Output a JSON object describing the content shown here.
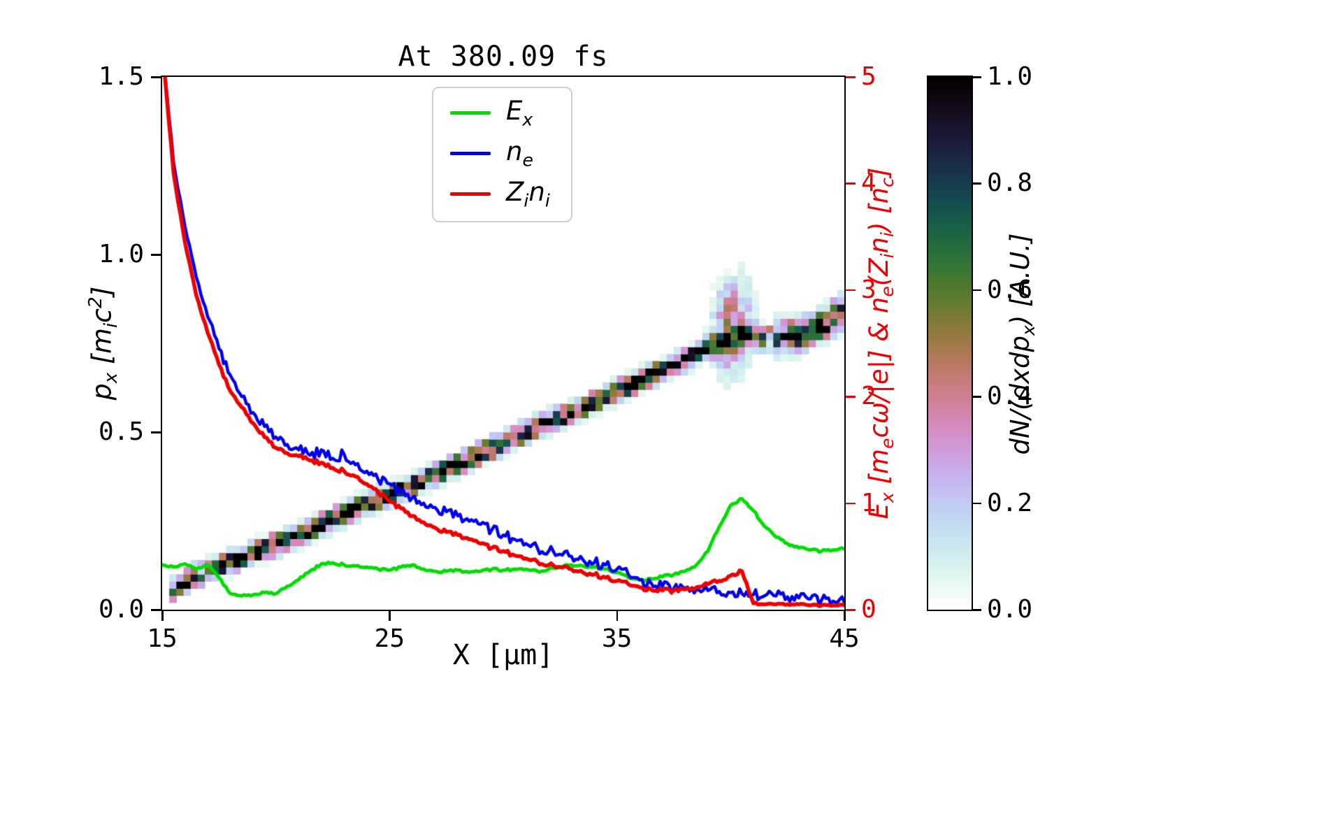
{
  "title": "At 380.09 fs",
  "axes": {
    "xlabel": "X [μm]",
    "ylabel_left": "p_x [m_ic^2]",
    "ylabel_right": "E_x [m_ecω/|e|] & n_e(Z_in_i) [n_c]",
    "x_ticks": [
      "15",
      "25",
      "35",
      "45"
    ],
    "x_tick_values": [
      15,
      25,
      35,
      45
    ],
    "y_ticks_left": [
      "0.0",
      "0.5",
      "1.0",
      "1.5"
    ],
    "y_tick_left_values": [
      0,
      0.5,
      1.0,
      1.5
    ],
    "y_ticks_right": [
      "0",
      "1",
      "2",
      "3",
      "4",
      "5"
    ],
    "y_tick_right_values": [
      0,
      1,
      2,
      3,
      4,
      5
    ],
    "x_range": [
      15,
      45
    ],
    "y_left_range": [
      0,
      1.5
    ],
    "y_right_range": [
      0,
      5
    ]
  },
  "colorbar": {
    "label": "dN/(dxdp_x) [A.U.]",
    "ticks": [
      "0.0",
      "0.2",
      "0.4",
      "0.6",
      "0.8",
      "1.0"
    ],
    "tick_values": [
      0,
      0.2,
      0.4,
      0.6,
      0.8,
      1.0
    ],
    "range": [
      0,
      1
    ],
    "colormap": "cubehelix_r"
  },
  "legend": [
    {
      "label": "E_x",
      "color": "#00dd00"
    },
    {
      "label": "n_e",
      "color": "#0000ee"
    },
    {
      "label": "Z_in_i",
      "color": "#ee0000"
    }
  ],
  "colors": {
    "green": "#00dd00",
    "blue": "#0000ee",
    "red": "#ee0000",
    "axis": "#000000"
  },
  "chart_data": {
    "type": "mixed",
    "x_unit": "μm",
    "x": [
      15,
      15.5,
      16,
      16.5,
      17,
      17.5,
      18,
      18.5,
      19,
      19.5,
      20,
      20.5,
      21,
      21.5,
      22,
      22.5,
      23,
      23.5,
      24,
      24.5,
      25,
      25.5,
      26,
      26.5,
      27,
      27.5,
      28,
      28.5,
      29,
      29.5,
      30,
      30.5,
      31,
      31.5,
      32,
      32.5,
      33,
      33.5,
      34,
      34.5,
      35,
      35.5,
      36,
      36.5,
      37,
      37.5,
      38,
      38.5,
      39,
      39.5,
      40,
      40.5,
      41,
      41.5,
      42,
      42.5,
      43,
      43.5,
      44,
      44.5,
      45
    ],
    "charts": [
      {
        "type": "heatmap",
        "name": "dN/(dxdp_x) [A.U.]",
        "axis": "left",
        "x_range": [
          15,
          45
        ],
        "y_range": [
          0,
          1.5
        ],
        "value_range": [
          0,
          1
        ],
        "ridge_x": [
          15.3,
          16,
          17,
          18,
          19,
          20,
          21,
          22,
          23,
          24,
          25,
          26,
          27,
          28,
          29,
          30,
          31,
          32,
          33,
          34,
          35,
          36,
          37,
          38,
          39,
          39.5,
          40,
          40.5,
          41,
          41.5,
          42,
          42.5,
          43,
          43.5,
          44,
          44.5,
          45
        ],
        "ridge_p": [
          0.05,
          0.08,
          0.11,
          0.135,
          0.16,
          0.185,
          0.21,
          0.24,
          0.27,
          0.3,
          0.325,
          0.35,
          0.38,
          0.41,
          0.44,
          0.47,
          0.5,
          0.53,
          0.555,
          0.585,
          0.615,
          0.645,
          0.675,
          0.705,
          0.735,
          0.75,
          0.765,
          0.775,
          0.77,
          0.765,
          0.765,
          0.77,
          0.775,
          0.785,
          0.8,
          0.82,
          0.84
        ],
        "band_sigma_p": 0.017,
        "plume": {
          "x_center": 40.1,
          "x_sigma": 0.55,
          "p_sigma": 0.07,
          "amplitude": 0.42
        },
        "note": "dense dark diagonal phase-space band from (15.3,0.05) to (45,0.84) with colored speckle edges and a diffuse light-blue plume near x=40, p=0.75-0.93"
      },
      {
        "type": "line",
        "name": "E_x",
        "axis": "right",
        "color": "#00dd00",
        "y": [
          0.42,
          0.4,
          0.43,
          0.38,
          0.42,
          0.3,
          0.15,
          0.13,
          0.14,
          0.16,
          0.15,
          0.22,
          0.28,
          0.36,
          0.43,
          0.44,
          0.42,
          0.41,
          0.4,
          0.38,
          0.37,
          0.4,
          0.42,
          0.38,
          0.36,
          0.36,
          0.37,
          0.35,
          0.36,
          0.38,
          0.37,
          0.38,
          0.38,
          0.36,
          0.38,
          0.4,
          0.42,
          0.41,
          0.4,
          0.38,
          0.35,
          0.3,
          0.28,
          0.29,
          0.31,
          0.33,
          0.36,
          0.42,
          0.55,
          0.78,
          0.98,
          1.04,
          0.93,
          0.78,
          0.68,
          0.62,
          0.58,
          0.56,
          0.55,
          0.56,
          0.57
        ]
      },
      {
        "type": "line",
        "name": "n_e",
        "axis": "right",
        "color": "#0000ee",
        "y": [
          5.3,
          4.2,
          3.6,
          3.12,
          2.75,
          2.45,
          2.2,
          2.0,
          1.85,
          1.72,
          1.62,
          1.55,
          1.5,
          1.45,
          1.5,
          1.42,
          1.46,
          1.36,
          1.3,
          1.22,
          1.18,
          1.1,
          1.05,
          1.0,
          0.96,
          0.92,
          0.88,
          0.83,
          0.8,
          0.75,
          0.7,
          0.66,
          0.62,
          0.58,
          0.55,
          0.52,
          0.5,
          0.47,
          0.44,
          0.42,
          0.38,
          0.33,
          0.28,
          0.25,
          0.22,
          0.2,
          0.2,
          0.19,
          0.18,
          0.17,
          0.16,
          0.15,
          0.14,
          0.13,
          0.13,
          0.12,
          0.11,
          0.1,
          0.09,
          0.08,
          0.07
        ]
      },
      {
        "type": "line",
        "name": "Z_in_i",
        "axis": "right",
        "color": "#ee0000",
        "y": [
          5.3,
          4.1,
          3.45,
          2.95,
          2.6,
          2.3,
          2.05,
          1.9,
          1.75,
          1.62,
          1.52,
          1.47,
          1.44,
          1.4,
          1.38,
          1.33,
          1.3,
          1.25,
          1.18,
          1.1,
          1.02,
          0.95,
          0.88,
          0.82,
          0.77,
          0.73,
          0.7,
          0.66,
          0.62,
          0.58,
          0.55,
          0.51,
          0.48,
          0.45,
          0.42,
          0.4,
          0.38,
          0.35,
          0.33,
          0.3,
          0.27,
          0.24,
          0.21,
          0.19,
          0.18,
          0.18,
          0.19,
          0.21,
          0.24,
          0.27,
          0.32,
          0.36,
          0.06,
          0.05,
          0.05,
          0.05,
          0.05,
          0.04,
          0.04,
          0.04,
          0.04
        ]
      }
    ]
  }
}
